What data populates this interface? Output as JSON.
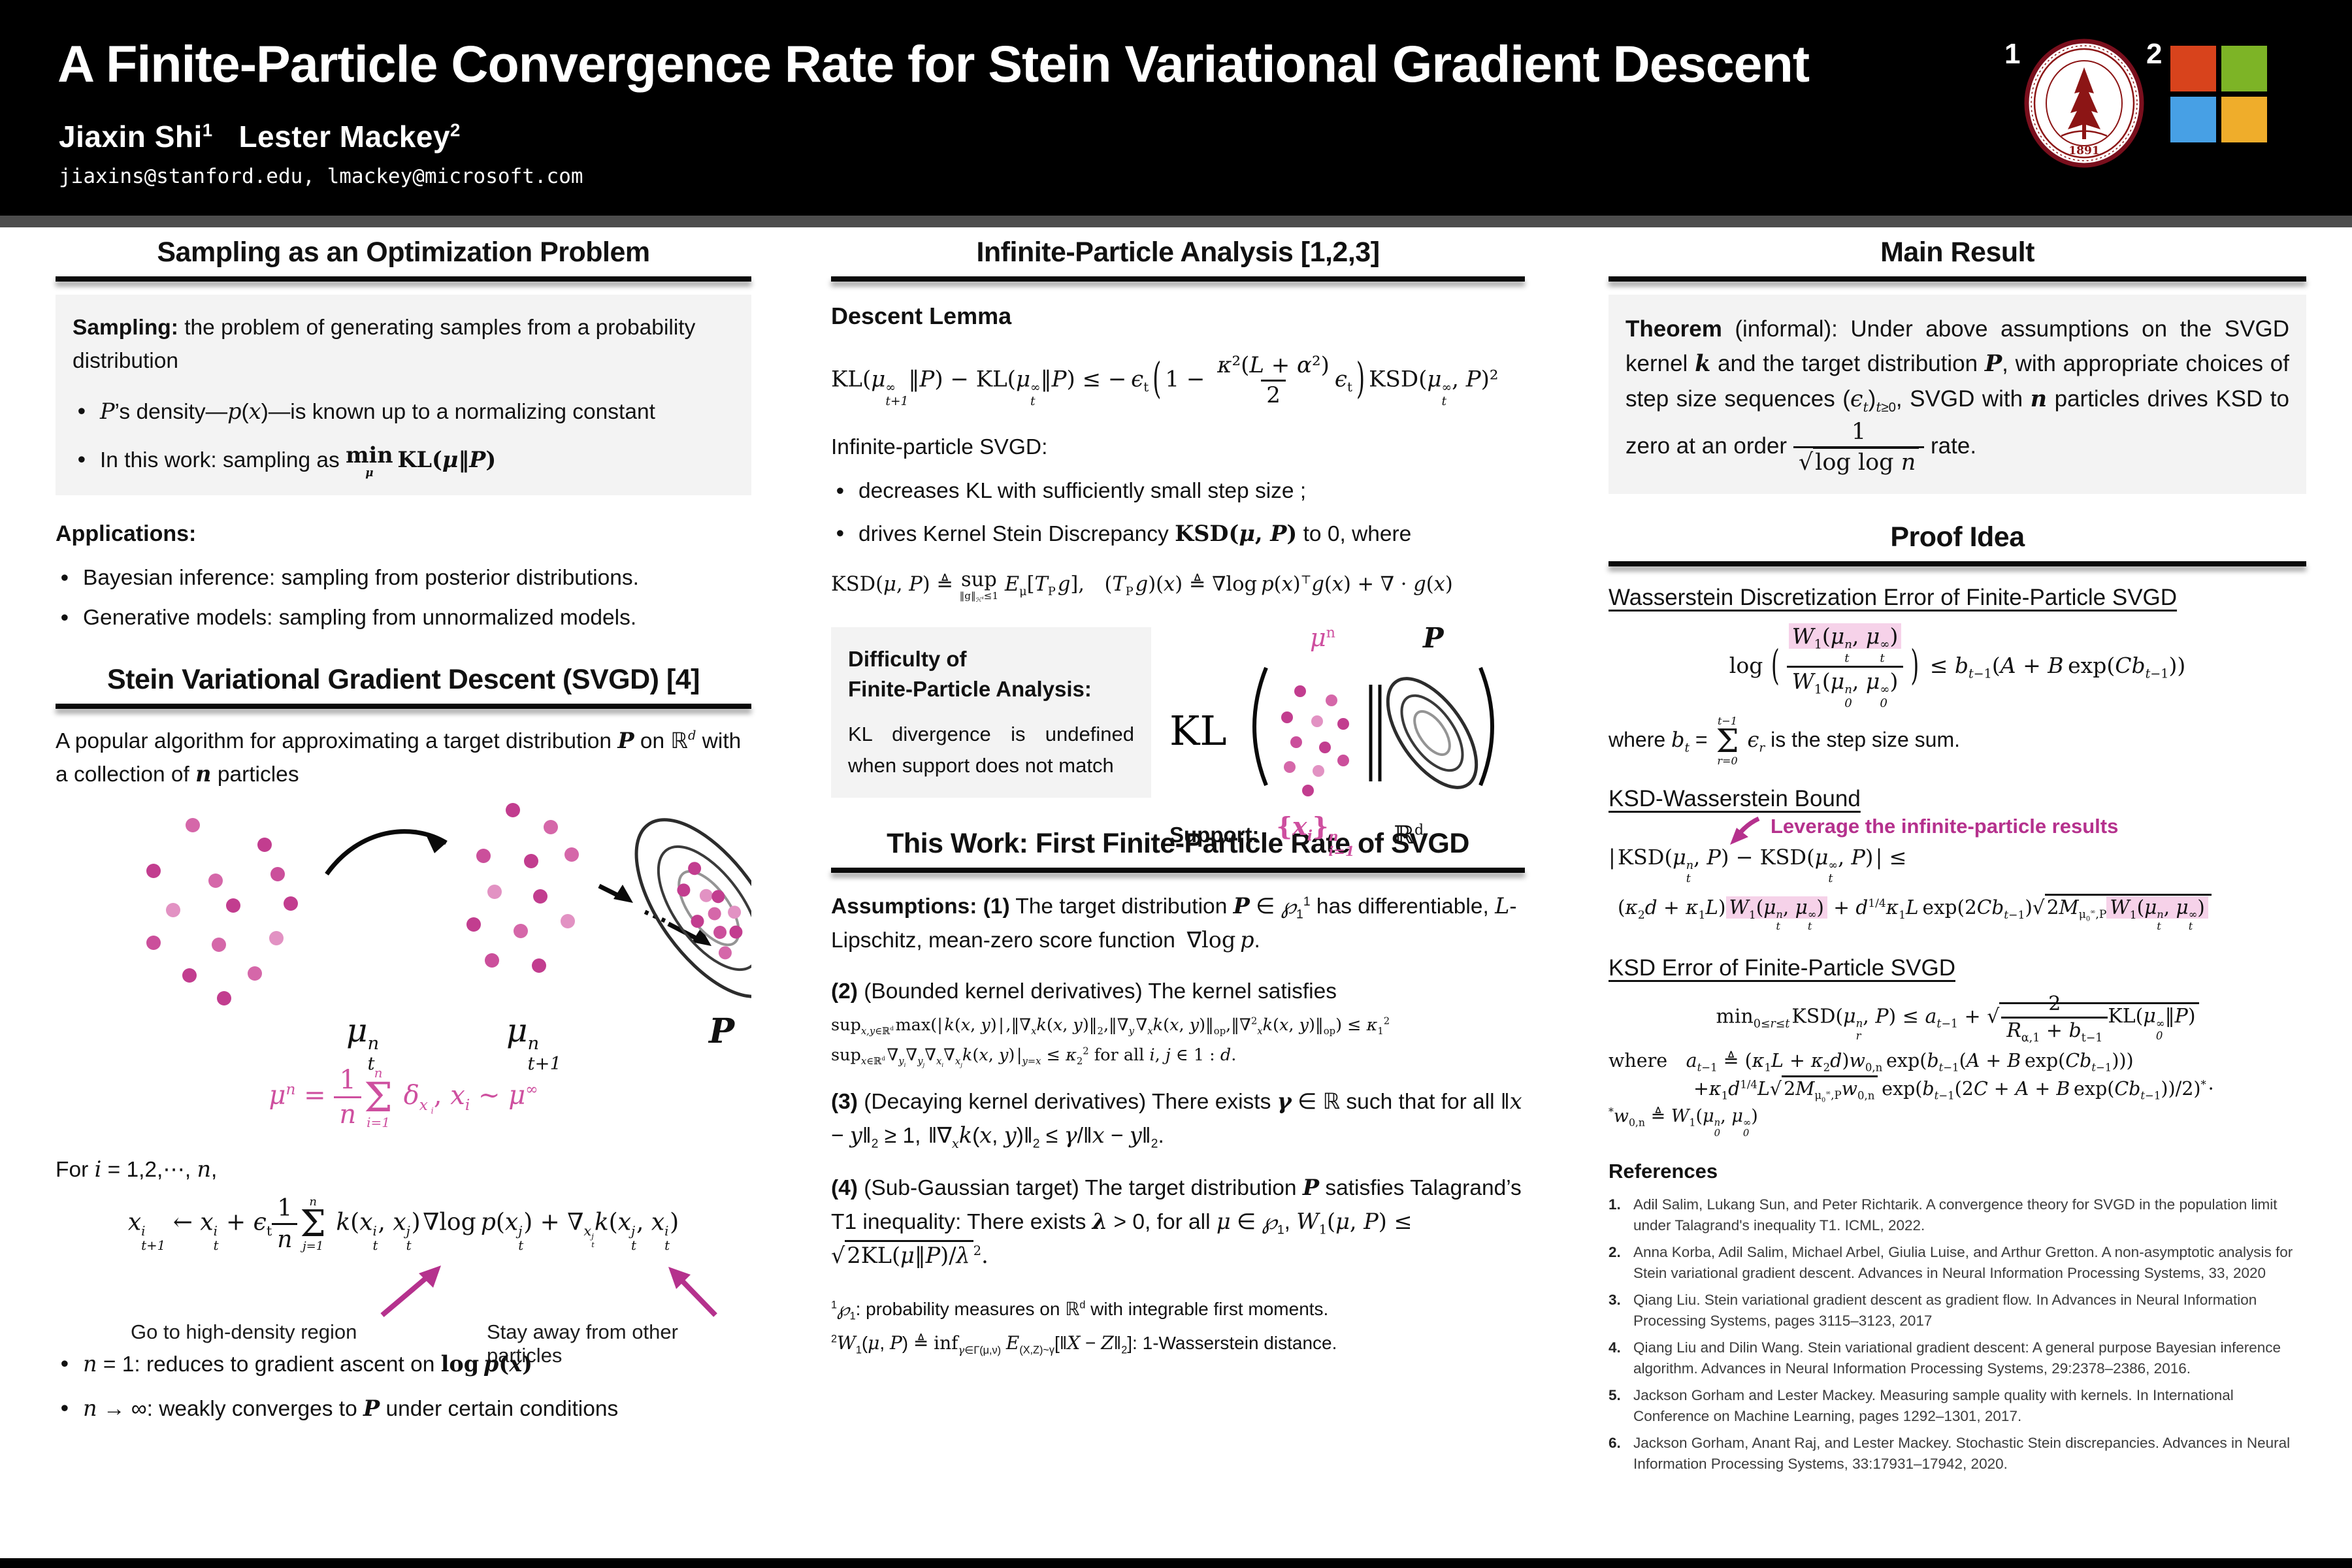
{
  "colors": {
    "accent_magenta": "#b5318d",
    "accent_pink": "#ce4f9f",
    "highlight_pink": "#f6d2e9",
    "stanford_red": "#8c1515",
    "ms_red": "#d8431c",
    "ms_green": "#7db426",
    "ms_blue": "#47a0e5",
    "ms_yellow": "#efad2b",
    "header_bg": "#000000"
  },
  "header": {
    "title": "A Finite-Particle Convergence Rate for Stein Variational Gradient Descent",
    "authors_html": "Jiaxin Shi<sup>1</sup> &nbsp;&nbsp;Lester Mackey<sup>2</sup>",
    "emails": "jiaxins@stanford.edu, lmackey@microsoft.com",
    "affil_1": "1",
    "affil_2": "2",
    "seal_year": "1891"
  },
  "col1": {
    "sec1_title": "Sampling as an Optimization Problem",
    "sampling_html": "<b>Sampling:</b> the problem of generating samples from a probability distribution",
    "bullet1_html": "<i>P</i>&#8217;s density&#8212;<i>p</i>(<i>x</i>)&#8212;is known up to a normalizing constant",
    "bullet2_html": "In this work: sampling as <span class='m b'><span class='under'><span class='rm'>min</span><span class='ub'><i>&#956;</i></span></span>&#8201;<span class='rm'>KL</span>(<i>&#956;</i>&#8214;<i>P</i>)</span>",
    "applications_label": "Applications:",
    "app1": "Bayesian inference: sampling from posterior distributions.",
    "app2": "Generative models: sampling from unnormalized models.",
    "sec2_title": "Stein Variational Gradient Descent (SVGD) [4]",
    "svgd_intro_html": "A popular algorithm for approximating a target distribution <i><b>P</b></i> on &#8477;<sup><i>d</i></sup> with a collection of <i><b>n</b></i> particles",
    "fig_mu_t_html": "<i>&#956;</i><span class='ss'><span>n</span><span>t</span></span>",
    "fig_mu_t1_html": "<i>&#956;</i><span class='ss'><span>n</span><span>t+1</span></span>",
    "fig_P_html": "<i>P</i>",
    "empirical_html": "<i>&#956;</i><sup><i>n</i></sup> = <span class='fr'><span>1</span><span class='de'><i>n</i></span></span><span class='sum'><span class='lim'>n</span><span class='sig'>&#931;</span><span class='lim'>i=1</span></span> <i>&#948;</i><sub><i>x&#8201;<sub>i</sub></i></sub>, <i>x<sub>i</sub></i> ~ <i>&#956;</i><sup>&#8734;</sup>",
    "for_html": "For <i>i</i> = 1,2,&#8943;, <i>n</i>,",
    "update_html": "<i>x</i><span class='ss'><span>i</span><span>t+1</span></span> &#8592; <i>x</i><span class='ss'><span>i</span><span>t</span></span> + <i>&#1013;</i><sub>t</sub><span class='fr'><span>1</span><span class='de'><i>n</i></span></span><span class='sum'><span class='lim'>n</span><span class='sig'>&#931;</span><span class='lim'>j=1</span></span> <i>k</i>(<i>x</i><span class='ss'><span>i</span><span>t</span></span>, <i>x</i><span class='ss'><span>j</span><span>t</span></span>)&#8202;&#8711;<span class='rm'>log</span>&#8201;<i>p</i>(<i>x</i><span class='ss'><span>j</span><span>t</span></span>) + &#8711;<sub><i>x</i><span class='ss'><span>j</span><span>t</span></span></sub><i>k</i>(<i>x</i><span class='ss'><span>j</span><span>t</span></span>, <i>x</i><span class='ss'><span>i</span><span>t</span></span>)",
    "annot_left": "Go to high-density region",
    "annot_right": "Stay away from other particles",
    "n1_html": "<i>n</i> = 1: reduces to gradient ascent on <span class='m b'><span class='rm'>log</span>&#8201;<i>p</i>(<i>x</i>)</span>",
    "ninf_html": "<i>n</i> &#8594; &#8734;: weakly converges to <i><b>P</b></i> under certain conditions"
  },
  "col2": {
    "sec1_title": "Infinite-Particle Analysis [1,2,3]",
    "descent_label": "Descent Lemma",
    "descent_html": "<span class='rm'>KL</span>(<i>&#956;</i><span class='ss'><span>&#8734;</span><span>t+1</span></span>&#8214;<i>P</i>) &#8722; <span class='rm'>KL</span>(<i>&#956;</i><span class='ss'><span>&#8734;</span><span>t</span></span>&#8214;<i>P</i>) &#8804; &#8722;&#8201;<i>&#1013;</i><sub>t</sub><span class='bp'>(</span>1 &#8722; <span class='fr'><span><i>&#954;</i>&#178;(<i>L</i> + <i>&#945;</i>&#178;)</span><span class='de'>2</span></span><i>&#1013;</i><sub>t</sub><span class='bp'>)</span><span class='rm'>KSD</span>(<i>&#956;</i><span class='ss'><span>&#8734;</span><span>t</span></span>, <i>P</i>)&#178;",
    "infinite_label": "Infinite-particle SVGD:",
    "bullet1": "decreases KL with sufficiently small step size ;",
    "bullet2_html": "drives Kernel Stein Discrepancy <span class='m b'><span class='rm'>KSD</span>(<i>&#956;</i>, <i>P</i>)</span> to 0, where",
    "ksd_def_html": "<span class='rm'>KSD</span>(<i>&#956;</i>, <i>P</i>) &#8796; <span class='under'><span class='rm'>sup</span><span class='ub'>&#8214;g&#8214;<sub>&#8459;<sup>d</sup></sub>&#8804;1</span></span> <i>E</i><sub>&#956;</sub>[<i>T</i><sub>P</sub>&#8202;<i>g</i>],&#8195;(<i>T</i><sub>P</sub>&#8202;<i>g</i>)(<i>x</i>) &#8796; &#8711;<span class='rm'>log</span>&#8201;<i>p</i>(<i>x</i>)<sup>&#8868;</sup><i>g</i>(<i>x</i>) + &#8711; &#183; <i>g</i>(<i>x</i>)",
    "difficulty_title_html": "Difficulty of<br>Finite-Particle Analysis:",
    "difficulty_body": "KL divergence is undefined when support does not match",
    "fig_mu_n_html": "<i>&#956;</i><sup>n</sup>",
    "fig_P_html": "<i>P</i>",
    "fig_KL": "KL",
    "support_label": "Support:",
    "support_set_html": "{<i>x<sub>i</sub></i>}<span class='ss'><span>n</span><span>i=1</span></span>",
    "support_rd_html": "&#8477;<sup>d</sup>",
    "sec2_title": "This Work: First Finite-Particle Rate of SVGD",
    "assump1_html": "<b>Assumptions: (1)</b> The target distribution <i><b>P</b></i> &#8712; <i>&#8472;</i><sub>1</sub><sup>1</sup> has differentiable, <i>L</i>-Lipschitz, mean-zero score function &#8197;&#8711;<span class='rm'>log</span>&#8201;<i>p</i>.",
    "assump2_intro_html": "<b>(2)</b> (Bounded kernel derivatives) The kernel satisfies",
    "assump2_f1_html": "<span class='rm'>sup</span><sub><i>x,y</i>&#8712;&#8477;<sup>d</sup></sub>&#8202;<span class='rm'>max</span>(|&#8202;<i>k</i>(<i>x</i>, <i>y</i>)&#8202;|&#8202;,&#8214;&#8711;<sub><i>x</i></sub><i>k</i>(<i>x</i>, <i>y</i>)&#8214;<sub>2</sub>,&#8214;&#8711;<sub><i>y</i></sub>&#8202;&#8711;<sub><i>x</i></sub><i>k</i>(<i>x</i>, <i>y</i>)&#8214;<sub>op</sub>,&#8214;&#8711;<sup>2</sup><sub><i>x</i></sub><i>k</i>(<i>x</i>, <i>y</i>)&#8214;<sub>op</sub>) &#8804; <i>&#954;</i><sub>1</sub><sup>2</sup>",
    "assump2_f2_html": "<span class='rm'>sup</span><sub><i>x</i>&#8712;&#8477;<sup>d</sup></sub>&#8202;&#8711;<sub><i>y<sub>i</sub></i></sub>&#8711;<sub><i>y<sub>j</sub></i></sub>&#8711;<sub><i>x<sub>i</sub></i></sub>&#8711;<sub><i>x<sub>j</sub></i></sub><i>k</i>(<i>x</i>, <i>y</i>)&#8202;|<sub><i>y=x</i></sub> &#8804; <i>&#954;</i><sub>2</sub><sup>2</sup> for all <i>i</i>, <i>j</i> &#8712; 1 : <i>d</i>.",
    "assump3_html": "<b>(3)</b> (Decaying kernel derivatives) There exists <i><b>&#947;</b></i> &#8712; &#8477; such that for all &#8214;<i>x</i> &#8722; <i>y</i>&#8214;<sub>2</sub> &#8805; 1,&#8196;&#8214;&#8711;<sub><i>x</i></sub><i>k</i>(<i>x</i>, <i>y</i>)&#8214;<sub>2</sub> &#8804; <i>&#947;</i>/&#8214;<i>x</i> &#8722; <i>y</i>&#8214;<sub>2</sub>.",
    "assump4_html": "<b>(4)</b> (Sub-Gaussian target) The target distribution <i><b>P</b></i> satisfies Talagrand&#8217;s T1 inequality: There exists <i><b>&#955;</b></i> &gt; 0, for all <i>&#956;</i> &#8712; <i>&#8472;</i><sub>1</sub>, <span class='m'><i>W</i><sub>1</sub>(<i>&#956;</i>, <i>P</i>) &#8804; <span class='sq'>&#8730;<span class='ov'>2<span class='rm'>KL</span>(<i>&#956;</i>&#8214;<i>P</i>)/<i>&#955;</i></span></span><sup>2</sup>.</span>",
    "footnote1_html": "<sup>1</sup><i>&#8472;</i><sub>1</sub>: probability measures on &#8477;<sup>d</sup> with integrable first moments.",
    "footnote2_html": "<sup>2</sup><i>W</i><sub>1</sub>(<i>&#956;</i>, <i>P</i>) &#8796; <span class='rm'>inf</span><sub><i>&#947;</i>&#8712;&#915;(&#956;,&#957;)</sub> <i>E</i><sub>(X,Z)~&#947;</sub>[&#8214;<i>X</i> &#8722; <i>Z</i>&#8214;<sub>2</sub>]: 1-Wasserstein distance."
  },
  "col3": {
    "sec1_title": "Main Result",
    "theorem_html": "<b>Theorem</b> (informal): Under above assumptions on the SVGD kernel <i><b>k</b></i> and the target distribution <i><b>P</b></i>, with appropriate choices of step size sequences (<i>&#1013;<sub>t</sub></i>)<sub><i>t</i>&#8805;0</sub>, SVGD with <i><b>n</b></i> particles drives KSD to zero at an order <span class='m' style='display:inline-block;vertical-align:middle'><span class='fr'><span>1</span><span class='de'><span class='sq'>&#8730;<span class='ov'><span class='rm'>log log</span> <i>n</i></span></span></span></span></span> rate.",
    "sec2_title": "Proof Idea",
    "wde_title": "Wasserstein Discretization Error of Finite-Particle SVGD",
    "wde_html": "<span class='rm'>log</span>&#8201;<span class='bp'>(</span><span class='fr'><span><span class='hl'><i>W</i><sub>1</sub>(<i>&#956;</i><span class='ss'><span>n</span><span>t</span></span>, <i>&#956;</i><span class='ss'><span>&#8734;</span><span>t</span></span>)</span></span><span class='de'><i>W</i><sub>1</sub>(<i>&#956;</i><span class='ss'><span>n</span><span>0</span></span>, <i>&#956;</i><span class='ss'><span>&#8734;</span><span>0</span></span>)</span></span><span class='bp'>)</span> &#8804; <i>b</i><sub><i>t</i>&#8722;1</sub>(<i>A</i> + <i>B</i>&#8201;<span class='rm'>exp</span>(<i>Cb</i><sub><i>t</i>&#8722;1</sub>))",
    "stepsum_html": "where <i>b<sub>t</sub></i> = <span class='sum'><span class='lim'>t&#8722;1</span><span class='sig'>&#931;</span><span class='lim'>r=0</span></span> <i>&#1013;<sub>r</sub></i> is the step size sum.",
    "kwb_title": "KSD-Wasserstein Bound",
    "leverage": "Leverage the infinite-particle results",
    "kwb1_html": "|&#8202;<span class='rm'>KSD</span>(<i>&#956;</i><span class='ss'><span>n</span><span>t</span></span>, <i>P</i>) &#8722; <span class='rm'>KSD</span>(<i>&#956;</i><span class='ss'><span>&#8734;</span><span>t</span></span>, <i>P</i>)&#8202;| &#8804;",
    "kwb2_html": "(<i>&#954;</i><sub>2</sub><i>d</i> + <i>&#954;</i><sub>1</sub><i>L</i>)<span class='hl'><i>W</i><sub>1</sub>(<i>&#956;</i><span class='ss'><span>n</span><span>t</span></span>, <i>&#956;</i><span class='ss'><span>&#8734;</span><span>t</span></span>)</span> + <i>d</i><sup>1/4</sup><i>&#954;</i><sub>1</sub><i>L</i>&#8201;<span class='rm'>exp</span>(2<i>Cb</i><sub><i>t</i>&#8722;1</sub>)<span class='sq'>&#8730;<span class='ov'>2<i>M</i><sub>&#956;<sub>0</sub><sup>&#8734;</sup>,P</sub><span class='hl'><i>W</i><sub>1</sub>(<i>&#956;</i><span class='ss'><span>n</span><span>t</span></span>, <i>&#956;</i><span class='ss'><span>&#8734;</span><span>t</span></span>)</span></span></span>",
    "kerr_title": "KSD Error of Finite-Particle SVGD",
    "kerr_html": "<span class='rm'>min</span><sub>0&#8804;<i>r</i>&#8804;<i>t</i></sub>&#8202;<span class='rm'>KSD</span>(<i>&#956;</i><span class='ss'><span>n</span><span>r</span></span>, <i>P</i>) &#8804; <i>a</i><sub><i>t</i>&#8722;1</sub> + <span class='sq'>&#8730;<span class='ov'><span class='fr'><span>2</span><span class='de'><i>R</i><sub>&#945;,1</sub> + <i>b</i><sub>t&#8722;1</sub></span></span><span class='rm'>KL</span>(<i>&#956;</i><span class='ss'><span>&#8734;</span><span>0</span></span>&#8214;<i>P</i>)</span></span>",
    "where_a1_html": "where&#8195;<i>a</i><sub><i>t</i>&#8722;1</sub> &#8796; (<i>&#954;</i><sub>1</sub><i>L</i> + <i>&#954;</i><sub>2</sub><i>d</i>)<i>w</i><sub>0,n</sub>&#8201;<span class='rm'>exp</span>(<i>b</i><sub><i>t</i>&#8722;1</sub>(<i>A</i> + <i>B</i>&#8201;<span class='rm'>exp</span>(<i>Cb</i><sub><i>t</i>&#8722;1</sub>)))",
    "where_a2_html": "+<i>&#954;</i><sub>1</sub><i>d</i><sup>1/4</sup><i>L</i><span class='sq'>&#8730;<span class='ov'>2<i>M</i><sub>&#956;<sub>0</sub><sup>&#8734;</sup>,P</sub><i>w</i><sub>0,n</sub></span></span>&#8201;<span class='rm'>exp</span>(<i>b</i><sub><i>t</i>&#8722;1</sub>(2<i>C</i> + <i>A</i> + <i>B</i>&#8201;<span class='rm'>exp</span>(<i>Cb</i><sub><i>t</i>&#8722;1</sub>))/2)<sup>*</sup>&#8202;&#183;",
    "w0n_html": "<sup>*</sup><i>w</i><sub>0,n</sub> &#8796; <i>W</i><sub>1</sub>(<i>&#956;</i><span class='ss'><span>n</span><span>0</span></span>, <i>&#956;</i><span class='ss'><span>&#8734;</span><span>0</span></span>)",
    "refs_title": "References",
    "refs": [
      "Adil Salim, Lukang Sun, and Peter Richtarik. A convergence theory for SVGD in the population limit under Talagrand's inequality T1. ICML, 2022.",
      "Anna Korba, Adil Salim, Michael Arbel, Giulia Luise, and Arthur Gretton. A non-asymptotic analysis for Stein variational gradient descent. Advances in Neural Information Processing Systems, 33, 2020",
      "Qiang Liu. Stein variational gradient descent as gradient flow. In Advances in Neural Information Processing Systems, pages 3115–3123, 2017",
      "Qiang Liu and Dilin Wang. Stein variational gradient descent: A general purpose Bayesian inference algorithm. Advances in Neural Information Processing Systems, 29:2378–2386, 2016.",
      "Jackson Gorham and Lester Mackey. Measuring sample quality with kernels. In International Conference on Machine Learning, pages 1292–1301, 2017.",
      "Jackson Gorham, Anant Raj, and Lester Mackey. Stochastic Stein discrepancies. Advances in Neural Information Processing Systems, 33:17931–17942, 2020."
    ],
    "ref_nums": [
      "1.",
      "2.",
      "3.",
      "4.",
      "5.",
      "6."
    ]
  }
}
